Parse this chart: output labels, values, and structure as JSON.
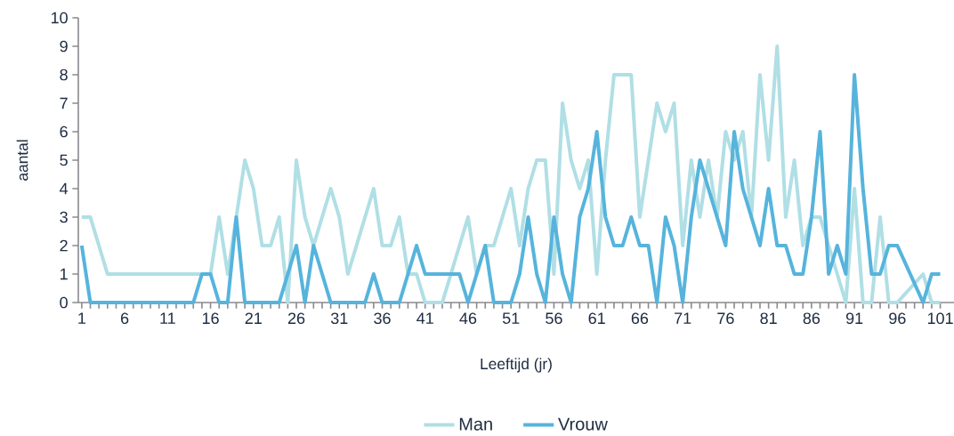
{
  "chart_data": {
    "type": "line",
    "xlabel": "Leeftijd (jr)",
    "ylabel": "aantal",
    "categories": [
      "1",
      null,
      null,
      null,
      null,
      "6",
      null,
      null,
      null,
      null,
      "11",
      null,
      null,
      null,
      null,
      "16",
      null,
      null,
      null,
      null,
      "21",
      null,
      null,
      null,
      null,
      "26",
      null,
      null,
      null,
      null,
      "31",
      null,
      null,
      null,
      null,
      "36",
      null,
      null,
      null,
      null,
      "41",
      null,
      null,
      null,
      null,
      "46",
      null,
      null,
      null,
      null,
      "51",
      null,
      null,
      null,
      null,
      "56",
      null,
      null,
      null,
      null,
      "61",
      null,
      null,
      null,
      null,
      "66",
      null,
      null,
      null,
      null,
      "71",
      null,
      null,
      null,
      null,
      "76",
      null,
      null,
      null,
      null,
      "81",
      null,
      null,
      null,
      null,
      "86",
      null,
      null,
      null,
      null,
      "91",
      null,
      null,
      null,
      null,
      "96",
      null,
      null,
      null,
      null,
      "101"
    ],
    "series": [
      {
        "name": "Man",
        "color": "#b0dfe5",
        "values": [
          3,
          3,
          2,
          1,
          1,
          1,
          1,
          1,
          1,
          1,
          1,
          1,
          1,
          1,
          1,
          1,
          3,
          1,
          3,
          5,
          4,
          2,
          2,
          3,
          0,
          5,
          3,
          2,
          3,
          4,
          3,
          1,
          2,
          3,
          4,
          2,
          2,
          3,
          1,
          1,
          0,
          0,
          0,
          1,
          2,
          3,
          1,
          2,
          2,
          3,
          4,
          2,
          4,
          5,
          5,
          1,
          7,
          5,
          4,
          5,
          1,
          5,
          8,
          8,
          8,
          3,
          5,
          7,
          6,
          7,
          2,
          5,
          3,
          5,
          3,
          6,
          5,
          6,
          3,
          8,
          5,
          9,
          3,
          5,
          2,
          3,
          3,
          2,
          1,
          0,
          4,
          0,
          0,
          3,
          0,
          0,
          null,
          null,
          1,
          0,
          0
        ]
      },
      {
        "name": "Vrouw",
        "color": "#56b4dc",
        "values": [
          2,
          0,
          0,
          0,
          0,
          0,
          0,
          0,
          0,
          0,
          0,
          0,
          0,
          0,
          1,
          1,
          0,
          0,
          3,
          0,
          0,
          0,
          0,
          0,
          1,
          2,
          0,
          2,
          1,
          0,
          0,
          0,
          0,
          0,
          1,
          0,
          0,
          0,
          1,
          2,
          1,
          1,
          1,
          1,
          1,
          0,
          1,
          2,
          0,
          0,
          0,
          1,
          3,
          1,
          0,
          3,
          1,
          0,
          3,
          4,
          6,
          3,
          2,
          2,
          3,
          2,
          2,
          0,
          3,
          2,
          0,
          3,
          5,
          4,
          3,
          2,
          6,
          4,
          3,
          2,
          4,
          2,
          2,
          1,
          1,
          3,
          6,
          1,
          2,
          1,
          8,
          4,
          1,
          1,
          2,
          2,
          null,
          null,
          0,
          1,
          1
        ]
      }
    ],
    "ylim": [
      0,
      10
    ],
    "yticks": [
      0,
      1,
      2,
      3,
      4,
      5,
      6,
      7,
      8,
      9,
      10
    ],
    "legend": "bottom",
    "line_style": "solid"
  }
}
